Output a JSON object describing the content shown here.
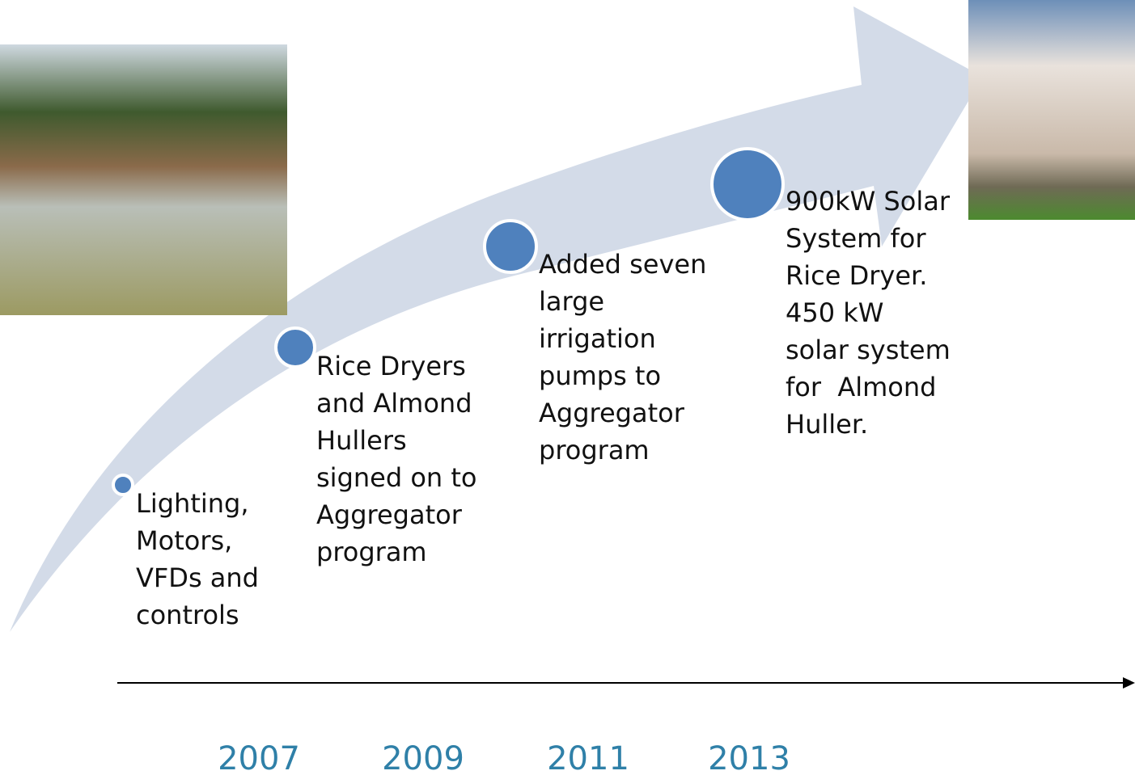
{
  "milestones": [
    {
      "lines": [
        "Lighting,",
        "Motors,",
        "VFDs and",
        "controls"
      ]
    },
    {
      "lines": [
        "Rice Dryers",
        "and Almond",
        "Hullers",
        "signed on to",
        "Aggregator",
        "program"
      ]
    },
    {
      "lines": [
        "Added seven",
        "large",
        "irrigation",
        "pumps to",
        "Aggregator",
        "program"
      ]
    },
    {
      "lines": [
        "900kW Solar",
        "System for",
        "Rice Dryer.",
        "450 kW",
        "solar system",
        "for  Almond",
        "Huller."
      ]
    }
  ],
  "years": [
    "2007",
    "2009",
    "2011",
    "2013"
  ]
}
